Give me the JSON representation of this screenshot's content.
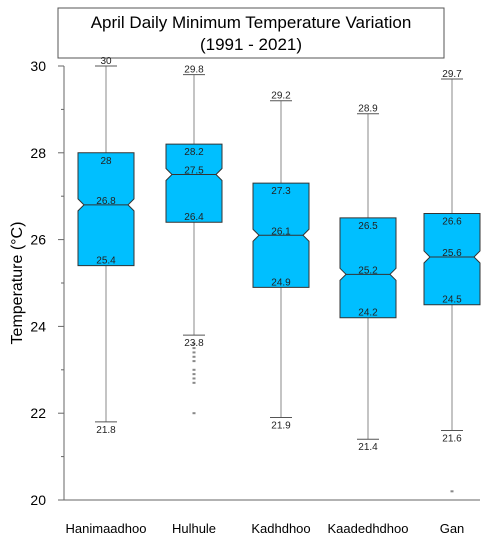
{
  "chart_data": {
    "type": "box",
    "title_line1": "April Daily Minimum Temperature Variation",
    "title_line2": "(1991 - 2021)",
    "ylabel": "Temperature (°C)",
    "xlabel": "",
    "ylim": [
      20,
      30
    ],
    "yticks": [
      20,
      22,
      24,
      26,
      28,
      30
    ],
    "box_color": "#00BFFF",
    "categories": [
      "Hanimaadhoo",
      "Hulhule",
      "Kadhdhoo",
      "Kaadedhdhoo",
      "Gan"
    ],
    "series": [
      {
        "min": 21.8,
        "max": 30,
        "q1": 25.4,
        "median": 26.8,
        "q3": 28,
        "labels": {
          "max": "30",
          "q3": "28",
          "median": "26.8",
          "q1": "25.4",
          "min": "21.8"
        },
        "outliers": []
      },
      {
        "min": 23.8,
        "max": 29.8,
        "q1": 26.4,
        "median": 27.5,
        "q3": 28.2,
        "labels": {
          "max": "29.8",
          "q3": "28.2",
          "median": "27.5",
          "q1": "26.4",
          "min": "23.8"
        },
        "outliers": [
          23.6,
          23.5,
          23.4,
          23.3,
          23.2,
          23.0,
          22.9,
          22.8,
          22.7,
          22.0
        ]
      },
      {
        "min": 21.9,
        "max": 29.2,
        "q1": 24.9,
        "median": 26.1,
        "q3": 27.3,
        "labels": {
          "max": "29.2",
          "q3": "27.3",
          "median": "26.1",
          "q1": "24.9",
          "min": "21.9"
        },
        "outliers": []
      },
      {
        "min": 21.4,
        "max": 28.9,
        "q1": 24.2,
        "median": 25.2,
        "q3": 26.5,
        "labels": {
          "max": "28.9",
          "q3": "26.5",
          "median": "25.2",
          "q1": "24.2",
          "min": "21.4"
        },
        "outliers": []
      },
      {
        "min": 21.6,
        "max": 29.7,
        "q1": 24.5,
        "median": 25.6,
        "q3": 26.6,
        "labels": {
          "max": "29.7",
          "q3": "26.6",
          "median": "25.6",
          "q1": "24.5",
          "min": "21.6"
        },
        "outliers": [
          20.2
        ]
      }
    ]
  }
}
